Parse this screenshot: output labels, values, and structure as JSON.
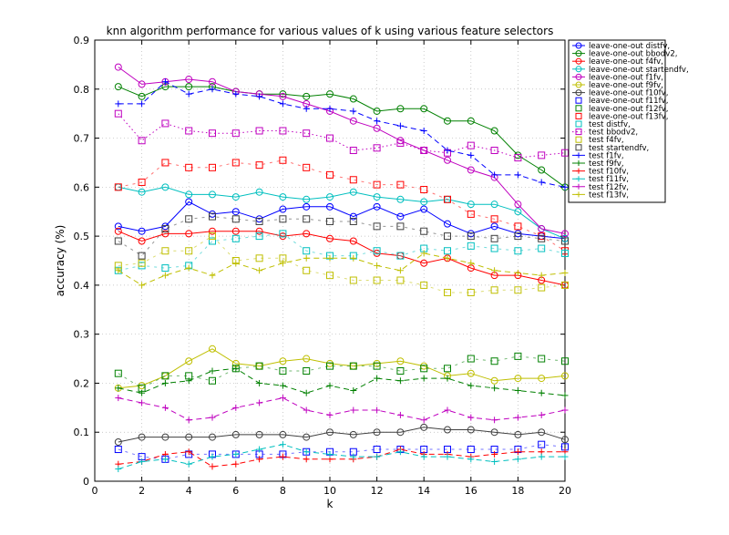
{
  "chart_data": {
    "type": "line",
    "title": "knn algorithm performance for various values of k using various feature selectors",
    "xlabel": "k",
    "ylabel": "accuracy (%)",
    "xlim": [
      0,
      20
    ],
    "ylim": [
      0,
      0.9
    ],
    "xticks": [
      0,
      2,
      4,
      6,
      8,
      10,
      12,
      14,
      16,
      18,
      20
    ],
    "yticks": [
      0,
      0.1,
      0.2,
      0.3,
      0.4,
      0.5,
      0.6,
      0.7,
      0.8,
      0.9
    ],
    "grid": true,
    "legend_position": "top-right",
    "x": [
      1,
      2,
      3,
      4,
      5,
      6,
      7,
      8,
      9,
      10,
      11,
      12,
      13,
      14,
      15,
      16,
      17,
      18,
      19,
      20
    ],
    "series": [
      {
        "name": "leave-one-out distfv,",
        "color": "#0000ff",
        "marker": "circle",
        "line": "solid",
        "values": [
          0.52,
          0.51,
          0.52,
          0.57,
          0.545,
          0.55,
          0.535,
          0.555,
          0.56,
          0.56,
          0.54,
          0.56,
          0.54,
          0.555,
          0.525,
          0.505,
          0.52,
          0.505,
          0.5,
          0.495
        ]
      },
      {
        "name": "leave-one-out bbodv2,",
        "color": "#008000",
        "marker": "circle",
        "line": "solid",
        "values": [
          0.805,
          0.785,
          0.805,
          0.805,
          0.805,
          0.795,
          0.79,
          0.79,
          0.785,
          0.79,
          0.78,
          0.755,
          0.76,
          0.76,
          0.735,
          0.735,
          0.715,
          0.665,
          0.635,
          0.6
        ]
      },
      {
        "name": "leave-one-out f4fv,",
        "color": "#ff0000",
        "marker": "circle",
        "line": "solid",
        "values": [
          0.51,
          0.49,
          0.505,
          0.505,
          0.51,
          0.51,
          0.51,
          0.5,
          0.505,
          0.495,
          0.49,
          0.465,
          0.46,
          0.445,
          0.455,
          0.435,
          0.42,
          0.42,
          0.41,
          0.4
        ]
      },
      {
        "name": "leave-one-out startendfv,",
        "color": "#00bfbf",
        "marker": "circle",
        "line": "solid",
        "values": [
          0.6,
          0.59,
          0.6,
          0.585,
          0.585,
          0.58,
          0.59,
          0.58,
          0.575,
          0.58,
          0.59,
          0.58,
          0.575,
          0.57,
          0.575,
          0.565,
          0.565,
          0.55,
          0.515,
          0.495
        ]
      },
      {
        "name": "leave-one-out f1fv,",
        "color": "#bf00bf",
        "marker": "circle",
        "line": "solid",
        "values": [
          0.845,
          0.81,
          0.815,
          0.82,
          0.815,
          0.795,
          0.79,
          0.785,
          0.77,
          0.755,
          0.735,
          0.72,
          0.695,
          0.675,
          0.655,
          0.635,
          0.62,
          0.565,
          0.515,
          0.505
        ]
      },
      {
        "name": "leave-one-out f9fv,",
        "color": "#bfbf00",
        "marker": "circle",
        "line": "solid",
        "values": [
          0.19,
          0.195,
          0.215,
          0.245,
          0.27,
          0.24,
          0.235,
          0.245,
          0.25,
          0.24,
          0.235,
          0.24,
          0.245,
          0.235,
          0.215,
          0.22,
          0.205,
          0.21,
          0.21,
          0.215
        ]
      },
      {
        "name": "leave-one-out f10fv,",
        "color": "#404040",
        "marker": "circle",
        "line": "solid",
        "values": [
          0.08,
          0.09,
          0.09,
          0.09,
          0.09,
          0.095,
          0.095,
          0.095,
          0.09,
          0.1,
          0.095,
          0.1,
          0.1,
          0.11,
          0.105,
          0.105,
          0.1,
          0.095,
          0.1,
          0.085
        ]
      },
      {
        "name": "leave-one-out f11fv,",
        "color": "#0000ff",
        "marker": "square",
        "line": "none",
        "values": [
          0.065,
          0.05,
          0.045,
          0.055,
          0.055,
          0.055,
          0.055,
          0.055,
          0.06,
          0.06,
          0.06,
          0.065,
          0.065,
          0.065,
          0.065,
          0.065,
          0.065,
          0.065,
          0.075,
          0.07
        ]
      },
      {
        "name": "leave-one-out f12fv,",
        "color": "#008000",
        "marker": "square",
        "line": "none",
        "values": [
          0.22,
          0.19,
          0.215,
          0.215,
          0.205,
          0.23,
          0.235,
          0.225,
          0.225,
          0.235,
          0.235,
          0.235,
          0.225,
          0.23,
          0.23,
          0.25,
          0.245,
          0.255,
          0.25,
          0.245
        ]
      },
      {
        "name": "leave-one-out f13fv,",
        "color": "#ff0000",
        "marker": "square",
        "line": "none",
        "values": [
          0.6,
          0.61,
          0.65,
          0.64,
          0.64,
          0.65,
          0.645,
          0.655,
          0.64,
          0.625,
          0.615,
          0.605,
          0.605,
          0.595,
          0.575,
          0.545,
          0.535,
          0.52,
          0.5,
          0.47
        ]
      },
      {
        "name": "test distfv,",
        "color": "#00bfbf",
        "marker": "square",
        "line": "none",
        "values": [
          0.43,
          0.44,
          0.435,
          0.44,
          0.49,
          0.495,
          0.5,
          0.505,
          0.47,
          0.46,
          0.46,
          0.47,
          0.46,
          0.475,
          0.47,
          0.48,
          0.475,
          0.47,
          0.475,
          0.465
        ]
      },
      {
        "name": "test bbodv2,",
        "color": "#bf00bf",
        "marker": "square",
        "line": "dotted",
        "values": [
          0.75,
          0.695,
          0.73,
          0.715,
          0.71,
          0.71,
          0.715,
          0.715,
          0.71,
          0.7,
          0.675,
          0.68,
          0.69,
          0.675,
          0.67,
          0.685,
          0.675,
          0.66,
          0.665,
          0.67
        ]
      },
      {
        "name": "test f4fv,",
        "color": "#bfbf00",
        "marker": "square",
        "line": "none",
        "values": [
          0.44,
          0.445,
          0.47,
          0.47,
          0.5,
          0.45,
          0.455,
          0.455,
          0.43,
          0.42,
          0.41,
          0.41,
          0.41,
          0.4,
          0.385,
          0.385,
          0.39,
          0.39,
          0.395,
          0.4
        ]
      },
      {
        "name": "test startendfv,",
        "color": "#404040",
        "marker": "square",
        "line": "none",
        "values": [
          0.49,
          0.46,
          0.515,
          0.535,
          0.54,
          0.535,
          0.53,
          0.535,
          0.535,
          0.53,
          0.53,
          0.52,
          0.52,
          0.51,
          0.5,
          0.5,
          0.495,
          0.5,
          0.495,
          0.49
        ]
      },
      {
        "name": "test f1fv,",
        "color": "#0000ff",
        "marker": "plus",
        "line": "dashed",
        "values": [
          0.77,
          0.77,
          0.815,
          0.79,
          0.8,
          0.79,
          0.785,
          0.77,
          0.76,
          0.76,
          0.755,
          0.735,
          0.725,
          0.715,
          0.675,
          0.665,
          0.625,
          0.625,
          0.61,
          0.6
        ]
      },
      {
        "name": "test f9fv,",
        "color": "#008000",
        "marker": "plus",
        "line": "dashed",
        "values": [
          0.19,
          0.18,
          0.2,
          0.205,
          0.225,
          0.23,
          0.2,
          0.195,
          0.18,
          0.195,
          0.185,
          0.21,
          0.205,
          0.21,
          0.21,
          0.195,
          0.19,
          0.185,
          0.18,
          0.175
        ]
      },
      {
        "name": "test f10fv,",
        "color": "#ff0000",
        "marker": "plus",
        "line": "dashed",
        "values": [
          0.035,
          0.04,
          0.055,
          0.06,
          0.03,
          0.035,
          0.045,
          0.05,
          0.045,
          0.045,
          0.045,
          0.05,
          0.065,
          0.055,
          0.055,
          0.05,
          0.055,
          0.06,
          0.06,
          0.06
        ]
      },
      {
        "name": "test f11fv,",
        "color": "#00bfbf",
        "marker": "plus",
        "line": "dashed",
        "values": [
          0.025,
          0.04,
          0.045,
          0.035,
          0.05,
          0.055,
          0.065,
          0.075,
          0.06,
          0.055,
          0.05,
          0.05,
          0.06,
          0.05,
          0.05,
          0.045,
          0.04,
          0.045,
          0.05,
          0.05
        ]
      },
      {
        "name": "test f12fv,",
        "color": "#bf00bf",
        "marker": "plus",
        "line": "dashed",
        "values": [
          0.17,
          0.16,
          0.15,
          0.125,
          0.13,
          0.15,
          0.16,
          0.17,
          0.145,
          0.135,
          0.145,
          0.145,
          0.135,
          0.125,
          0.145,
          0.13,
          0.125,
          0.13,
          0.135,
          0.145
        ]
      },
      {
        "name": "test f13fv,",
        "color": "#bfbf00",
        "marker": "plus",
        "line": "dashed",
        "values": [
          0.43,
          0.4,
          0.42,
          0.435,
          0.42,
          0.445,
          0.43,
          0.445,
          0.455,
          0.455,
          0.455,
          0.44,
          0.43,
          0.465,
          0.455,
          0.445,
          0.43,
          0.425,
          0.42,
          0.425
        ]
      }
    ]
  }
}
